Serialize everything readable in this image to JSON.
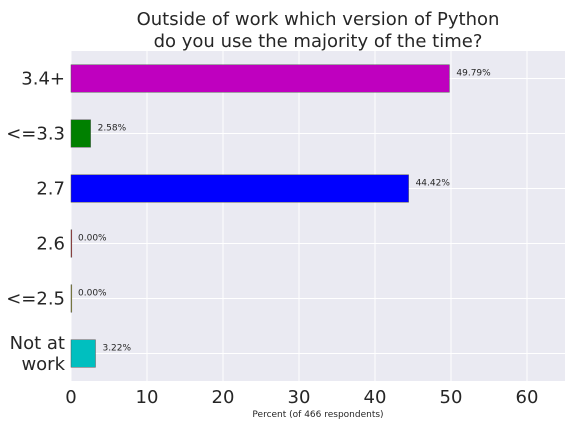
{
  "chart_data": {
    "type": "bar",
    "orientation": "horizontal",
    "title_lines": [
      "Outside of work which version of Python",
      "do you use the majority of the time?"
    ],
    "xlabel": "Percent (of 466 respondents)",
    "ylabel": "",
    "xlim": [
      0,
      65
    ],
    "xticks": [
      0,
      10,
      20,
      30,
      40,
      50,
      60
    ],
    "grid": true,
    "background": "#eaeaf2",
    "categories": [
      {
        "label_lines": [
          "3.4+"
        ],
        "value": 49.79,
        "label": "49.79%",
        "color": "#bf00bf"
      },
      {
        "label_lines": [
          "<=3.3"
        ],
        "value": 2.58,
        "label": "2.58%",
        "color": "#008000"
      },
      {
        "label_lines": [
          "2.7"
        ],
        "value": 44.42,
        "label": "44.42%",
        "color": "#0000ff"
      },
      {
        "label_lines": [
          "2.6"
        ],
        "value": 0.0,
        "label": "0.00%",
        "color": "#ff0000"
      },
      {
        "label_lines": [
          "<=2.5"
        ],
        "value": 0.0,
        "label": "0.00%",
        "color": "#bfbf00"
      },
      {
        "label_lines": [
          "Not at",
          "work"
        ],
        "value": 3.22,
        "label": "3.22%",
        "color": "#00bfbf"
      }
    ]
  }
}
